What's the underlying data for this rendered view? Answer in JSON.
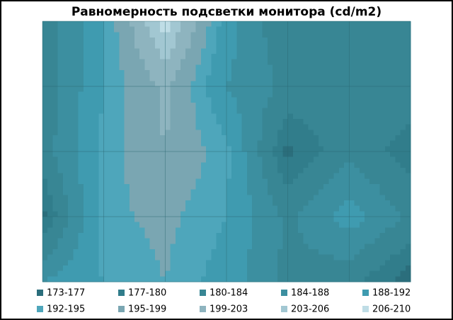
{
  "chart_data": {
    "type": "contour",
    "title": "Равномерность  подсветки монитора (cd/m2)",
    "levels": [
      173,
      177,
      180,
      184,
      188,
      192,
      195,
      199,
      203,
      206,
      210
    ],
    "legend": [
      {
        "label": "173-177",
        "color": "#2b6e7c"
      },
      {
        "label": "177-180",
        "color": "#317d8b"
      },
      {
        "label": "180-184",
        "color": "#388694"
      },
      {
        "label": "184-188",
        "color": "#3c8fa0"
      },
      {
        "label": "188-192",
        "color": "#3f9bb0"
      },
      {
        "label": "192-195",
        "color": "#4ea6bb"
      },
      {
        "label": "195-199",
        "color": "#7aa6b2"
      },
      {
        "label": "199-203",
        "color": "#8eb4bf"
      },
      {
        "label": "203-206",
        "color": "#a2c7d2"
      },
      {
        "label": "206-210",
        "color": "#bfdde6"
      }
    ],
    "z": [
      [
        181,
        192,
        208,
        190,
        180,
        182,
        181
      ],
      [
        181,
        192,
        200,
        188,
        183,
        182,
        183
      ],
      [
        182,
        193,
        199,
        193,
        176,
        183,
        178
      ],
      [
        176,
        194,
        196,
        192,
        183,
        190,
        183
      ],
      [
        188,
        192,
        195,
        190,
        183,
        181,
        175
      ]
    ]
  }
}
